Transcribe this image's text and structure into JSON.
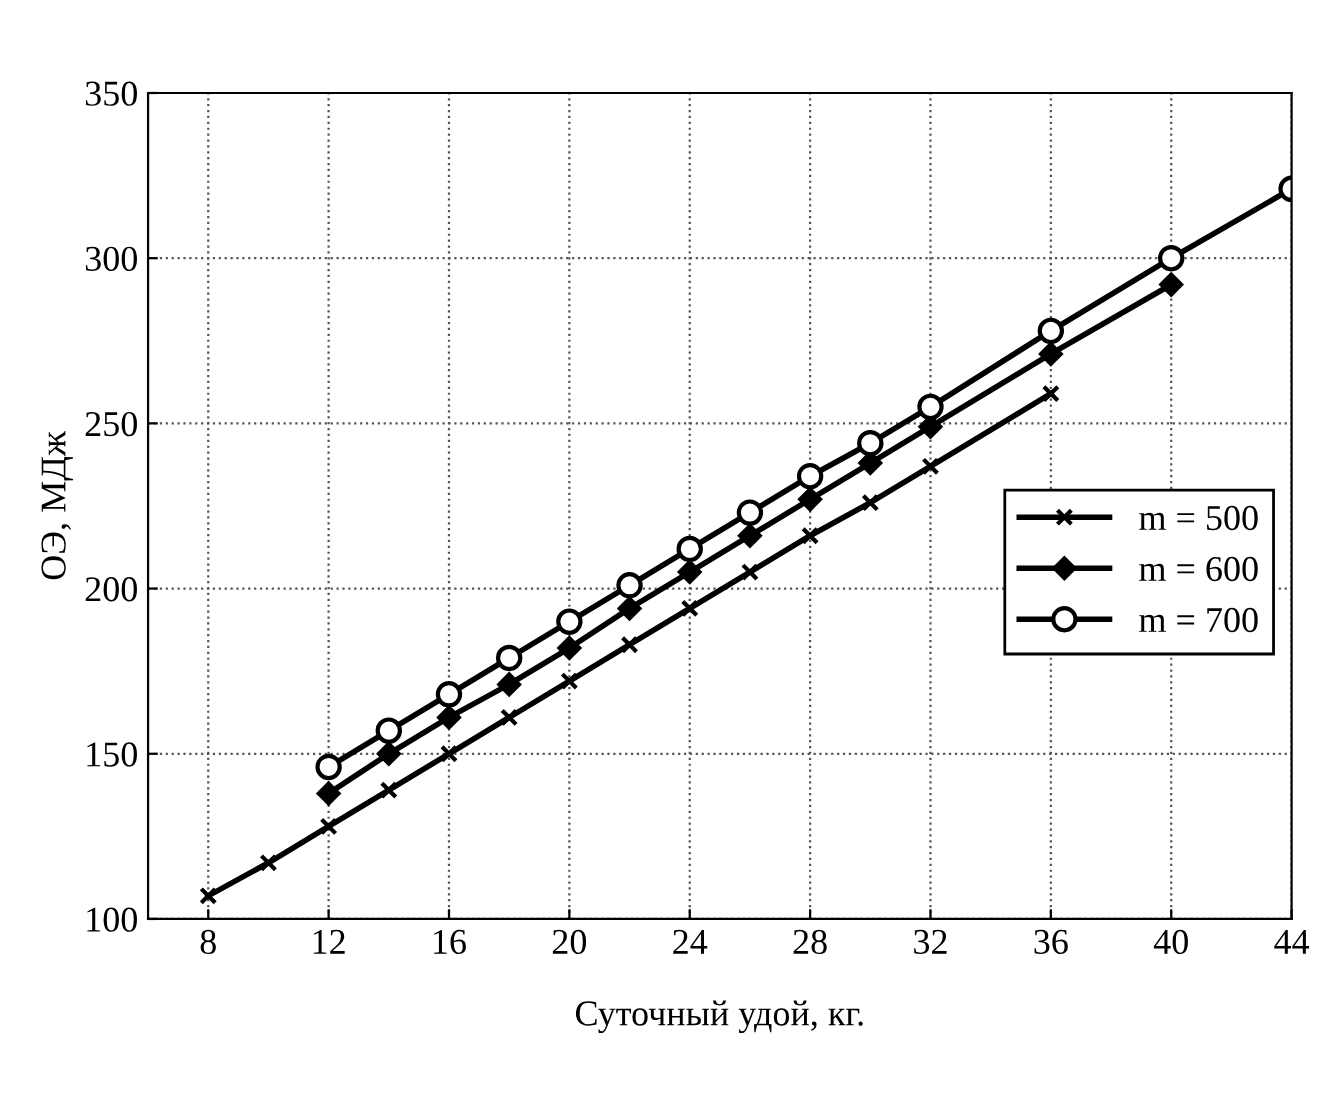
{
  "chart_data": {
    "type": "line",
    "xlabel": "Суточный удой, кг.",
    "ylabel": "ОЭ, МДж",
    "xlim": [
      6,
      44
    ],
    "xticks": [
      8,
      12,
      16,
      20,
      24,
      28,
      32,
      36,
      40,
      44
    ],
    "ylim": [
      100,
      350
    ],
    "yticks": [
      100,
      150,
      200,
      250,
      300,
      350
    ],
    "grid": true,
    "legend": "right",
    "series": [
      {
        "name": "m = 500",
        "color": "#000000",
        "marker": "cross",
        "x": [
          8,
          10,
          12,
          14,
          16,
          18,
          20,
          22,
          24,
          26,
          28,
          30,
          32,
          36
        ],
        "values": [
          107,
          117,
          128,
          139,
          150,
          161,
          172,
          183,
          194,
          205,
          216,
          226,
          237,
          259
        ]
      },
      {
        "name": "m = 600",
        "color": "#000000",
        "marker": "diamond",
        "x": [
          12,
          14,
          16,
          18,
          20,
          22,
          24,
          26,
          28,
          30,
          32,
          36,
          40
        ],
        "values": [
          138,
          150,
          161,
          171,
          182,
          194,
          205,
          216,
          227,
          238,
          249,
          271,
          292
        ]
      },
      {
        "name": "m = 700",
        "color": "#000000",
        "marker": "circle",
        "x": [
          12,
          14,
          16,
          18,
          20,
          22,
          24,
          26,
          28,
          30,
          32,
          36,
          40,
          44
        ],
        "values": [
          146,
          157,
          168,
          179,
          190,
          201,
          212,
          223,
          234,
          244,
          255,
          278,
          300,
          321
        ]
      }
    ]
  }
}
